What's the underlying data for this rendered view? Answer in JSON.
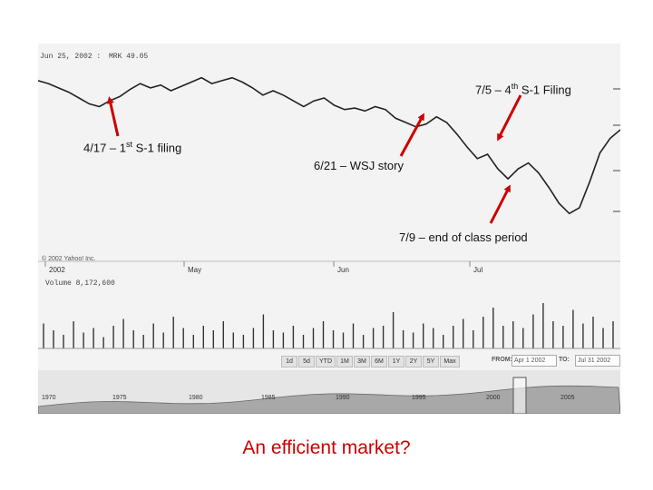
{
  "header": {
    "date_text": "Jun 25, 2002 :",
    "ticker_text": "MRK 49.05",
    "copyright": "© 2002 Yahoo! Inc.",
    "volume_text": "Volume 8,172,600"
  },
  "chart_data": {
    "type": "line",
    "x_ticks": [
      "2002",
      "May",
      "Jun",
      "Jul"
    ],
    "price": [
      48.0,
      47.8,
      47.5,
      47.2,
      46.8,
      46.4,
      46.2,
      46.6,
      46.9,
      47.4,
      47.8,
      47.5,
      47.7,
      47.3,
      47.6,
      47.9,
      48.2,
      47.8,
      48.0,
      48.2,
      47.9,
      47.5,
      47.0,
      47.3,
      47.0,
      46.6,
      46.2,
      46.6,
      46.8,
      46.3,
      46.0,
      46.1,
      45.9,
      46.2,
      46.0,
      45.4,
      45.1,
      44.8,
      45.0,
      45.5,
      45.1,
      44.3,
      43.4,
      42.6,
      42.9,
      41.9,
      41.2,
      41.9,
      42.3,
      41.6,
      40.6,
      39.5,
      38.8,
      39.2,
      41.0,
      43.0,
      44.0,
      44.6
    ],
    "volume": [
      0.55,
      0.4,
      0.3,
      0.6,
      0.35,
      0.45,
      0.25,
      0.5,
      0.65,
      0.4,
      0.3,
      0.55,
      0.35,
      0.7,
      0.45,
      0.3,
      0.5,
      0.4,
      0.6,
      0.35,
      0.3,
      0.45,
      0.75,
      0.4,
      0.35,
      0.5,
      0.3,
      0.45,
      0.6,
      0.4,
      0.35,
      0.55,
      0.3,
      0.45,
      0.5,
      0.8,
      0.4,
      0.35,
      0.55,
      0.45,
      0.3,
      0.5,
      0.65,
      0.4,
      0.7,
      0.9,
      0.5,
      0.6,
      0.45,
      0.75,
      1.0,
      0.6,
      0.5,
      0.85,
      0.55,
      0.7,
      0.45,
      0.6
    ],
    "history_ticks": [
      "1970",
      "1975",
      "1980",
      "1985",
      "1990",
      "1995",
      "2000",
      "2005"
    ],
    "range_buttons": [
      "1d",
      "5d",
      "YTD",
      "1M",
      "3M",
      "6M",
      "1Y",
      "2Y",
      "5Y",
      "Max"
    ],
    "from_label": "FROM:",
    "from_value": "Apr 1 2002",
    "to_label": "TO:",
    "to_value": "Jul 31 2002"
  },
  "annotations": {
    "a1": {
      "pre": "4/17 – 1",
      "sup": "st",
      "post": " S-1 filing"
    },
    "a2": {
      "pre": "6/21 – WSJ story",
      "sup": "",
      "post": ""
    },
    "a3": {
      "pre": "7/5 – 4",
      "sup": "th",
      "post": " S-1 Filing"
    },
    "a4": {
      "pre": "7/9 – end of class period",
      "sup": "",
      "post": ""
    }
  },
  "caption": "An efficient market?",
  "colors": {
    "arrow": "#cc0000",
    "caption": "#cc0000",
    "line": "#222222"
  }
}
